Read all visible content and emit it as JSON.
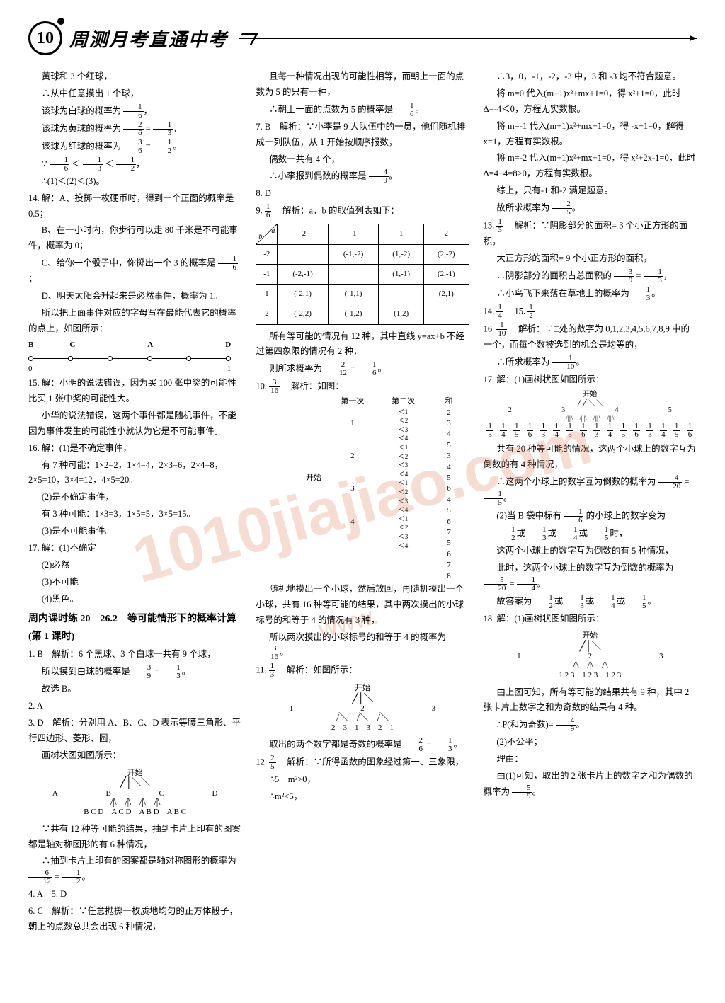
{
  "page_number": "10",
  "header_title": "周测月考直通中考",
  "watermark_main": "1010jiajiao.com",
  "watermark_sub": "www.",
  "colors": {
    "text": "#000000",
    "background": "#ffffff",
    "watermark": "rgba(220,120,80,0.25)"
  },
  "col1": {
    "l1": "黄球和 3 个红球，",
    "l2": "∴从中任意摸出 1 个球，",
    "l3a": "该球为白球的概率为",
    "l3f_n": "1",
    "l3f_d": "6",
    "l4a": "该球为黄球的概率为",
    "l4f1_n": "2",
    "l4f1_d": "6",
    "l4eq": "=",
    "l4f2_n": "1",
    "l4f2_d": "3",
    "l5a": "该球为红球的概率为",
    "l5f1_n": "3",
    "l5f1_d": "6",
    "l5eq": "=",
    "l5f2_n": "1",
    "l5f2_d": "2",
    "l6_pre": "∵",
    "l6f1_n": "1",
    "l6f1_d": "6",
    "l6_lt1": "＜",
    "l6f2_n": "1",
    "l6f2_d": "3",
    "l6_lt2": "＜",
    "l6f3_n": "1",
    "l6f3_d": "2",
    "l7": "∴(1)＜(2)＜(3)。",
    "q14": "14. 解：A、投掷一枚硬币时，得到一个正面的概率是 0.5；",
    "q14b": "B、在一小时内，你步行可以走 80 千米是不可能事件，概率为 0；",
    "q14c_a": "C、给你一个骰子中，你掷出一个 3 的概率是",
    "q14c_n": "1",
    "q14c_d": "6",
    "q14d": "D、明天太阳会升起来是必然事件，概率为 1。",
    "q14e": "所以把上面事件对应的字母写在最能代表它的概率的点上，如图所示：",
    "numline_top": [
      "B",
      "C",
      "",
      "A",
      "",
      "D"
    ],
    "numline_bottom_l": "0",
    "numline_bottom_r": "1",
    "q15": "15. 解：小明的说法错误，因为买 100 张中奖的可能性比买 1 张中奖的可能性大。",
    "q15b": "小华的说法错误，这两个事件都是随机事件，不能因为事件发生的可能性小就认为它是不可能事件。",
    "q16": "16. 解：(1)是不确定事件，",
    "q16a": "有 7 种可能：1×2=2，1×4=4，2×3=6，2×4=8，2×5=10，3×4=12，4×5=20。",
    "q16b": "(2)是不确定事件，",
    "q16c": "有 3 种可能：1×3=3，1×5=5，3×5=15。",
    "q16d": "(3)是不可能事件。",
    "q17": "17. 解：(1)不确定",
    "q17_2": "(2)必然",
    "q17_3": "(3)不可能",
    "q17_4": "(4)黑色。",
    "section": "周内课时练 20　26.2　等可能情形下的概率计算(第 1 课时)",
    "s1a": "1. B　解析：6 个黑球、3 个白球一共有 9 个球，",
    "s1b_a": "所以摸到白球的概率是",
    "s1b_n1": "3",
    "s1b_d1": "9",
    "s1b_eq": "=",
    "s1b_n2": "1",
    "s1b_d2": "3",
    "s1c": "故选 B。",
    "s2": "2. A",
    "s3": "3. D　解析：分别用 A、B、C、D 表示等腰三角形、平行四边形、菱形、圆，",
    "s3b": "画树状图如图所示：",
    "tree3_start": "开始",
    "tree3_r1": [
      "A",
      "B",
      "C",
      "D"
    ],
    "tree3_r2": "B C D　A C D　A B D　A B C",
    "s3c": "∵共有 12 种等可能的结果，抽到卡片上印有的图案都是轴对称图形的有 6 种情况，",
    "s3d": "∴抽到卡片上印有的图案都是轴对称图形的概率为",
    "s3d_n1": "6",
    "s3d_d1": "12",
    "s3d_eq": "=",
    "s3d_n2": "1",
    "s3d_d2": "2",
    "s4": "4. A　5. D",
    "s6": "6. C　解析：∵任意抛掷一枚质地均匀的正方体骰子，朝上的点数总共会出现 6 种情况，"
  },
  "col2": {
    "l1": "且每一种情况出现的可能性相等，而朝上一面的点数为 5 的只有一种，",
    "l2a": "∴朝上一面的点数为 5 的概率是",
    "l2_n": "1",
    "l2_d": "6",
    "q7": "7. B　解析：∵小李是 9 人队伍中的一员，他们随机排成一列队伍，从 1 开始按顺序报数，",
    "q7b": "偶数一共有 4 个，",
    "q7c_a": "∴小李报到偶数的概率是",
    "q7c_n": "4",
    "q7c_d": "9",
    "q8": "8. D",
    "q9a": "9.",
    "q9_n": "1",
    "q9_d": "6",
    "q9b": "解析：a，b 的取值列表如下：",
    "table": {
      "header": [
        "-2",
        "-1",
        "1",
        "2"
      ],
      "rows": [
        {
          "lbl": "-2",
          "c": [
            "",
            "(-1,-2)",
            "(1,-2)",
            "(2,-2)"
          ]
        },
        {
          "lbl": "-1",
          "c": [
            "(-2,-1)",
            "",
            "(1,-1)",
            "(2,-1)"
          ]
        },
        {
          "lbl": "1",
          "c": [
            "(-2,1)",
            "(-1,1)",
            "",
            "(2,1)"
          ]
        },
        {
          "lbl": "2",
          "c": [
            "(-2,2)",
            "(-1,2)",
            "(1,2)",
            ""
          ]
        }
      ],
      "corner_a": "a",
      "corner_b": "b"
    },
    "q9c": "所有等可能的情况有 12 种，其中直线 y=ax+b 不经过第四象限的情况有 2 种，",
    "q9d_a": "则所求概率为",
    "q9d_n1": "2",
    "q9d_d1": "12",
    "q9d_eq": "=",
    "q9d_n2": "1",
    "q9d_d2": "6",
    "q10a": "10.",
    "q10_n": "3",
    "q10_d": "16",
    "q10b": "解析：如图：",
    "tree10_hdr1": "第一次",
    "tree10_hdr2": "第二次",
    "tree10_hdr3": "和",
    "tree10_start": "开始",
    "tree10_first": [
      "1",
      "2",
      "3",
      "4"
    ],
    "tree10_sums": [
      "2",
      "3",
      "4",
      "5",
      "3",
      "4",
      "5",
      "6",
      "4",
      "5",
      "6",
      "7",
      "5",
      "6",
      "7",
      "8"
    ],
    "tree10_second": [
      "1",
      "2",
      "3",
      "4"
    ],
    "q10c": "随机地摸出一个小球，然后放回，再随机摸出一个小球，共有 16 种等可能的结果，其中两次摸出的小球标号的和等于 4 的情况有 3 种，",
    "q10d_a": "所以两次摸出的小球标号的和等于 4 的概率为",
    "q10d_n": "3",
    "q10d_d": "16",
    "q11a": "11.",
    "q11_n": "1",
    "q11_d": "3",
    "q11b": "解析：如图所示：",
    "tree11_start": "开始",
    "tree11_r1": [
      "1",
      "2",
      "3"
    ],
    "tree11_r2": "2　3　1　3　2　1",
    "q11c_a": "取出的两个数字都是奇数的概率是",
    "q11c_n1": "2",
    "q11c_d1": "6",
    "q11c_eq": "=",
    "q11c_n2": "1",
    "q11c_d2": "3",
    "q12a": "12.",
    "q12_n": "2",
    "q12_d": "5",
    "q12b": "解析：∵所得函数的图象经过第一、三象限，",
    "q12c": "∴5－m²>0，",
    "q12d": "∴m²<5，"
  },
  "col3": {
    "l1": "∴3，0，-1，-2，-3 中，3 和 -3 均不符合题意。",
    "l2": "将 m=0 代入(m+1)x²+mx+1=0，得 x²+1=0，此时 Δ=-4＜0，方程无实数根。",
    "l3": "将 m=-1 代入(m+1)x²+mx+1=0，得 -x+1=0，解得 x=1，方程有实数根。",
    "l4": "将 m=-2 代入(m+1)x²+mx+1=0，得 x²+2x-1=0，此时 Δ=4+4=8>0，方程有实数根。",
    "l5": "综上，只有-1 和-2 满足题意。",
    "l6a": "故所求概率为",
    "l6_n": "2",
    "l6_d": "5",
    "q13a": "13.",
    "q13_n": "1",
    "q13_d": "3",
    "q13b": "解析：∵阴影部分的面积= 3 个小正方形的面积，",
    "q13c": "大正方形的面积= 9 个小正方形的面积，",
    "q13d_a": "∴阴影部分的面积占总面积的",
    "q13d_n1": "3",
    "q13d_d1": "9",
    "q13d_eq": "=",
    "q13d_n2": "1",
    "q13d_d2": "3",
    "q13e_a": "∴小鸟飞下来落在草地上的概率为",
    "q13e_n": "1",
    "q13e_d": "3",
    "q14": "14.",
    "q14_n": "1",
    "q14_d": "4",
    "q15": "15.",
    "q15_n": "1",
    "q15_d": "2",
    "q16a": "16.",
    "q16_n": "1",
    "q16_d": "10",
    "q16b": "解析：∵□处的数字为 0,1,2,3,4,5,6,7,8,9 中的一个，而每个数被选到的机会是均等的，",
    "q16c_a": "∴所求概率为",
    "q16c_n": "1",
    "q16c_d": "10",
    "q17": "17. 解：(1)画树状图如图所示：",
    "tree17_start": "开始",
    "tree17_r1": [
      "2",
      "3",
      "4",
      "5"
    ],
    "tree17_r2_items": "1/3 1/4 1/5 1/6",
    "q17b": "共有 20 种等可能的情况，这两个小球上的数字互为倒数的有 4 种情况，",
    "q17c_a": "∴这两个小球上的数字互为倒数的概率为",
    "q17c_n1": "4",
    "q17c_d1": "20",
    "q17c_eq": "=",
    "q17c_n2": "1",
    "q17c_d2": "5",
    "q17d_a": "(2)当 B 袋中标有",
    "q17d_n": "1",
    "q17d_d": "6",
    "q17d_b": "的小球上的数字变为",
    "q17e_n1": "1",
    "q17e_d1": "2",
    "q17e_or1": "或",
    "q17e_n2": "1",
    "q17e_d2": "3",
    "q17e_or2": "或",
    "q17e_n3": "1",
    "q17e_d3": "4",
    "q17e_or3": "或",
    "q17e_n4": "1",
    "q17e_d4": "5",
    "q17e_end": "时，",
    "q17f": "这两个小球上的数字互为倒数的有 5 种情况，",
    "q17g_a": "此时，这两个小球上的数字互为倒数的概率为",
    "q17g_n1": "5",
    "q17g_d1": "20",
    "q17g_eq": "=",
    "q17g_n2": "1",
    "q17g_d2": "4",
    "q17h_a": "故答案为",
    "q17h_n1": "1",
    "q17h_d1": "2",
    "q17h_o1": "或",
    "q17h_n2": "1",
    "q17h_d2": "3",
    "q17h_o2": "或",
    "q17h_n3": "1",
    "q17h_d3": "4",
    "q17h_o3": "或",
    "q17h_n4": "1",
    "q17h_d4": "5",
    "q18": "18. 解：(1)画树状图如图所示：",
    "tree18_start": "开始",
    "tree18_r1": [
      "1",
      "2",
      "3"
    ],
    "tree18_r2": "1 2 3　1 2 3　1 2 3",
    "q18b": "由上图可知，所有等可能的结果共有 9 种，其中 2 张卡片上数字之和为奇数的结果有 4 种。",
    "q18c_a": "∴P(和为奇数)=",
    "q18c_n": "4",
    "q18c_d": "9",
    "q18d": "(2)不公平；",
    "q18e": "理由：",
    "q18f_a": "由(1)可知，取出的 2 张卡片上的数字之和为偶数的概率为",
    "q18f_n": "5",
    "q18f_d": "9"
  }
}
